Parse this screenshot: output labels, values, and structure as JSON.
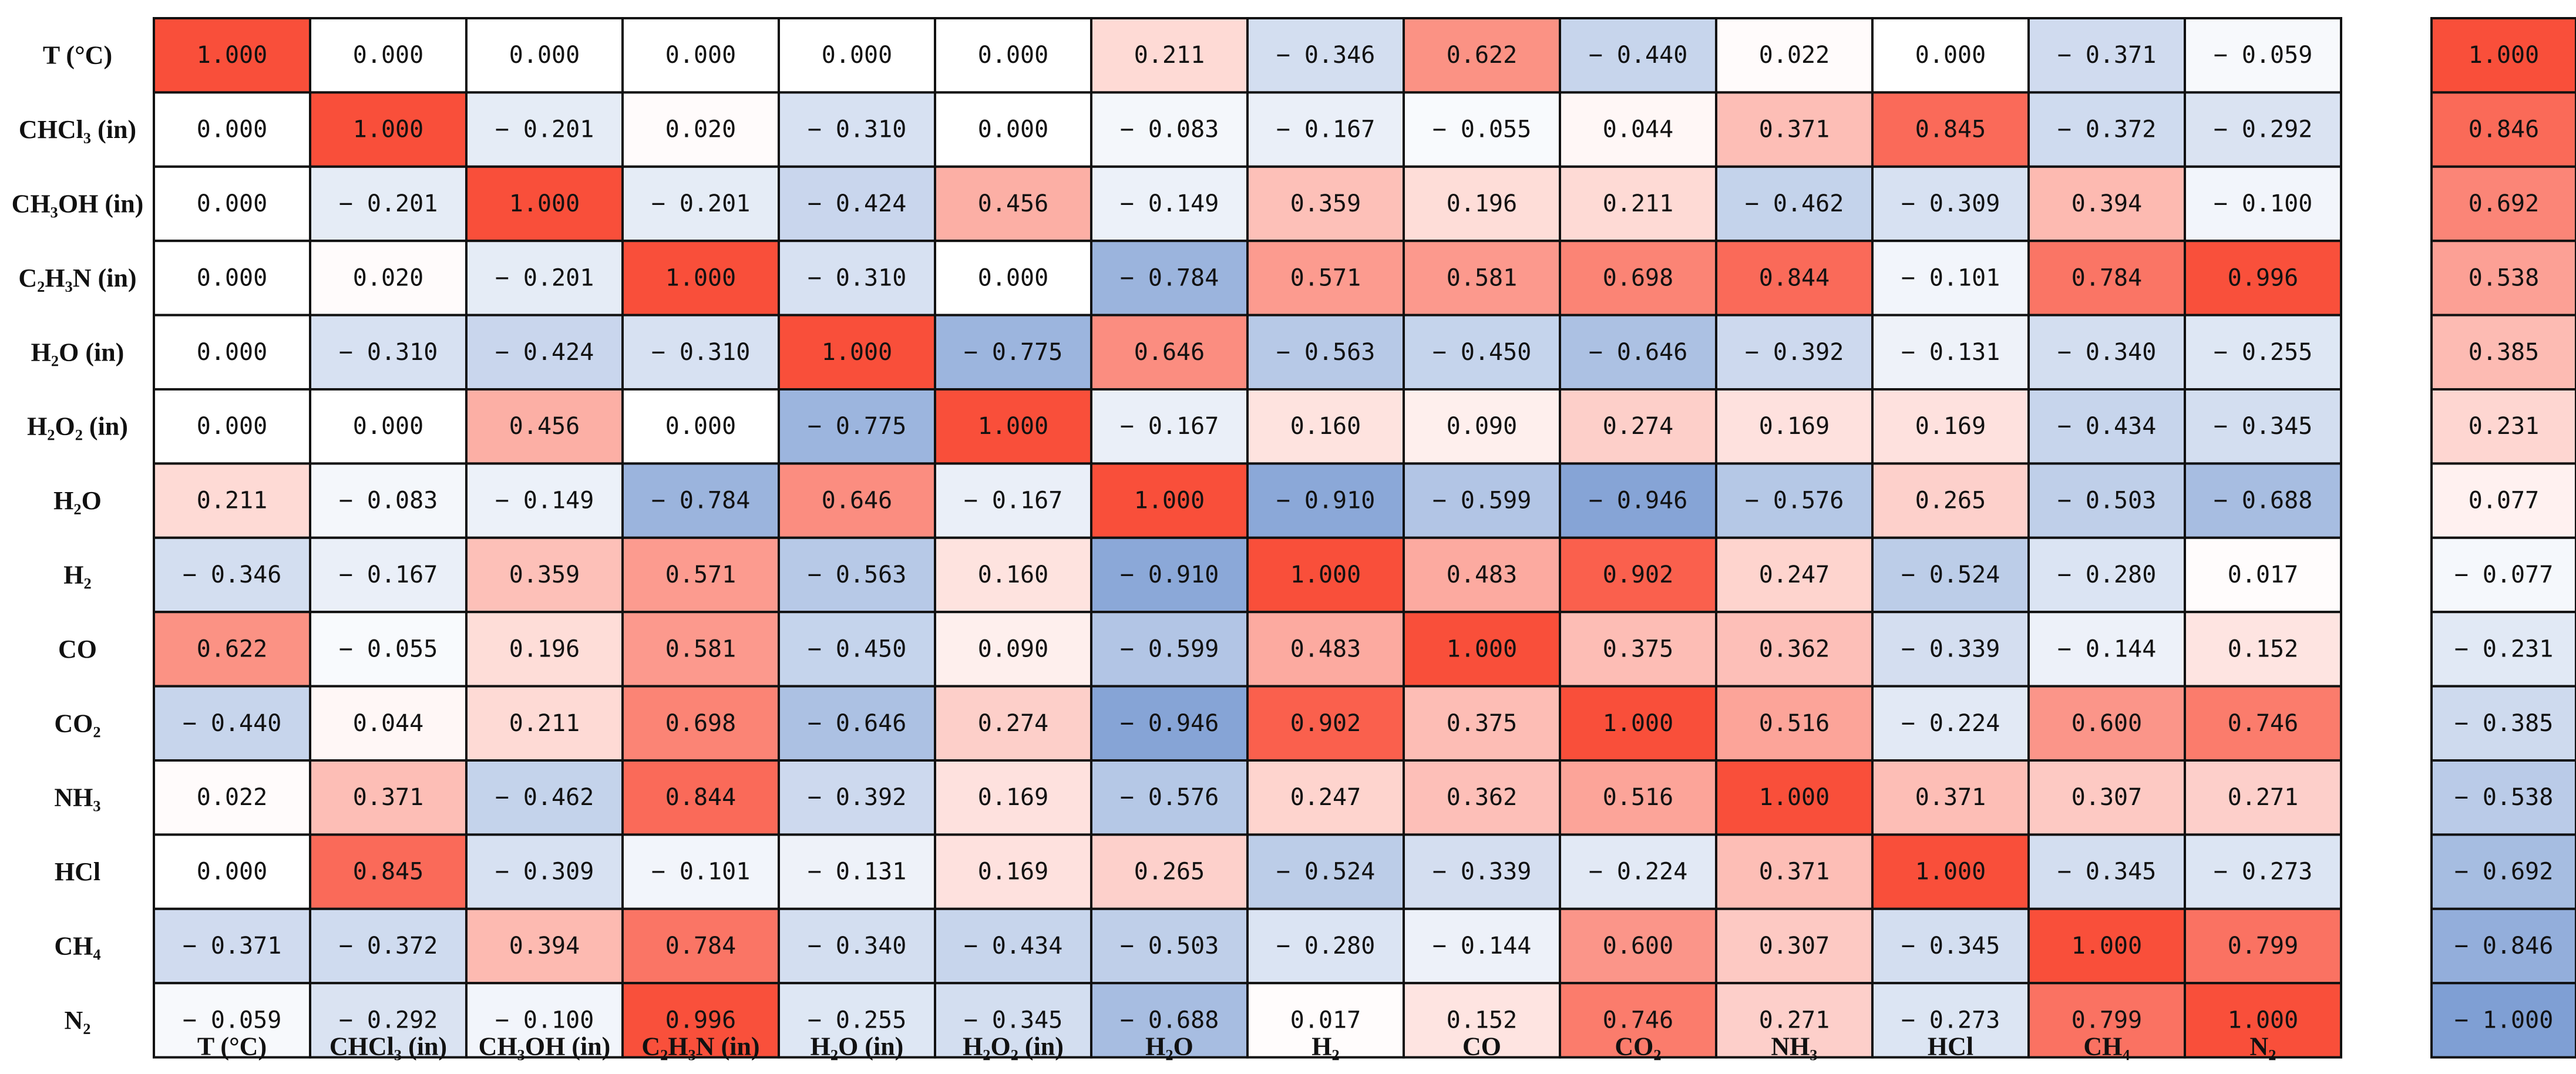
{
  "chart_data": {
    "type": "heatmap",
    "rows": [
      "T (°C)",
      "CHCl₃ (in)",
      "CH₃OH (in)",
      "C₂H₃N (in)",
      "H₂O (in)",
      "H₂O₂ (in)",
      "H₂O",
      "H₂",
      "CO",
      "CO₂",
      "NH₃",
      "HCl",
      "CH₄",
      "N₂"
    ],
    "columns": [
      "T (°C)",
      "CHCl₃ (in)",
      "CH₃OH (in)",
      "C₂H₃N (in)",
      "H₂O (in)",
      "H₂O₂ (in)",
      "H₂O",
      "H₂",
      "CO",
      "CO₂",
      "NH₃",
      "HCl",
      "CH₄",
      "N₂"
    ],
    "values": [
      [
        1.0,
        0.0,
        0.0,
        0.0,
        0.0,
        0.0,
        0.211,
        -0.346,
        0.622,
        -0.44,
        0.022,
        0.0,
        -0.371,
        -0.059
      ],
      [
        0.0,
        1.0,
        -0.201,
        0.02,
        -0.31,
        0.0,
        -0.083,
        -0.167,
        -0.055,
        0.044,
        0.371,
        0.845,
        -0.372,
        -0.292
      ],
      [
        0.0,
        -0.201,
        1.0,
        -0.201,
        -0.424,
        0.456,
        -0.149,
        0.359,
        0.196,
        0.211,
        -0.462,
        -0.309,
        0.394,
        -0.1
      ],
      [
        0.0,
        0.02,
        -0.201,
        1.0,
        -0.31,
        0.0,
        -0.784,
        0.571,
        0.581,
        0.698,
        0.844,
        -0.101,
        0.784,
        0.996
      ],
      [
        0.0,
        -0.31,
        -0.424,
        -0.31,
        1.0,
        -0.775,
        0.646,
        -0.563,
        -0.45,
        -0.646,
        -0.392,
        -0.131,
        -0.34,
        -0.255
      ],
      [
        0.0,
        0.0,
        0.456,
        0.0,
        -0.775,
        1.0,
        -0.167,
        0.16,
        0.09,
        0.274,
        0.169,
        0.169,
        -0.434,
        -0.345
      ],
      [
        0.211,
        -0.083,
        -0.149,
        -0.784,
        0.646,
        -0.167,
        1.0,
        -0.91,
        -0.599,
        -0.946,
        -0.576,
        0.265,
        -0.503,
        -0.688
      ],
      [
        -0.346,
        -0.167,
        0.359,
        0.571,
        -0.563,
        0.16,
        -0.91,
        1.0,
        0.483,
        0.902,
        0.247,
        -0.524,
        -0.28,
        0.017
      ],
      [
        0.622,
        -0.055,
        0.196,
        0.581,
        -0.45,
        0.09,
        -0.599,
        0.483,
        1.0,
        0.375,
        0.362,
        -0.339,
        -0.144,
        0.152
      ],
      [
        -0.44,
        0.044,
        0.211,
        0.698,
        -0.646,
        0.274,
        -0.946,
        0.902,
        0.375,
        1.0,
        0.516,
        -0.224,
        0.6,
        0.746
      ],
      [
        0.022,
        0.371,
        -0.462,
        0.844,
        -0.392,
        0.169,
        -0.576,
        0.247,
        0.362,
        0.516,
        1.0,
        0.371,
        0.307,
        0.271
      ],
      [
        0.0,
        0.845,
        -0.309,
        -0.101,
        -0.131,
        0.169,
        0.265,
        -0.524,
        -0.339,
        -0.224,
        0.371,
        1.0,
        -0.345,
        -0.273
      ],
      [
        -0.371,
        -0.372,
        0.394,
        0.784,
        -0.34,
        -0.434,
        -0.503,
        -0.28,
        -0.144,
        0.6,
        0.307,
        -0.345,
        1.0,
        0.799
      ],
      [
        -0.059,
        -0.292,
        -0.1,
        0.996,
        -0.255,
        -0.345,
        -0.688,
        0.017,
        0.152,
        0.746,
        0.271,
        -0.273,
        0.799,
        1.0
      ]
    ],
    "colorbar": {
      "values": [
        1.0,
        0.846,
        0.692,
        0.538,
        0.385,
        0.231,
        0.077,
        -0.077,
        -0.231,
        -0.385,
        -0.538,
        -0.692,
        -0.846,
        -1.0
      ],
      "range": [
        -1,
        1
      ]
    },
    "colors": {
      "positive": "#f94f3a",
      "negative": "#7f9fd4",
      "zero": "#ffffff",
      "border": "#111111"
    },
    "number_format": "3 decimals; negatives shown as '− 0.346'",
    "legend": "right"
  }
}
